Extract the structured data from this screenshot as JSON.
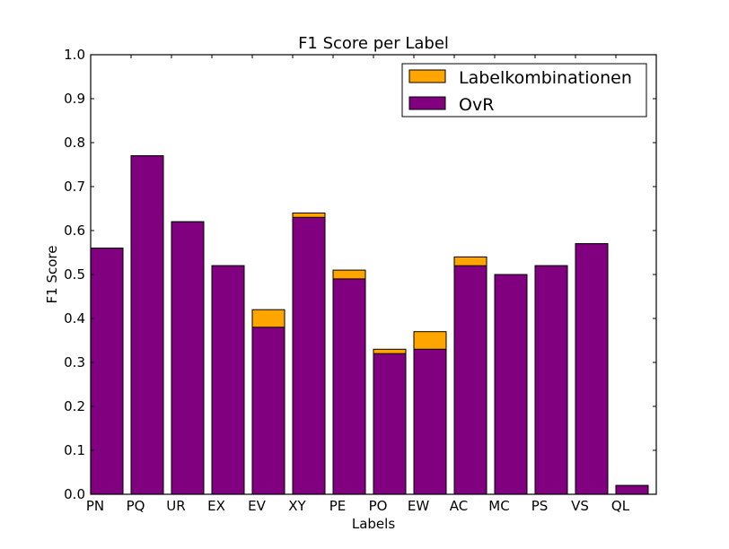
{
  "chart_data": {
    "type": "bar",
    "title": "F1 Score per Label",
    "xlabel": "Labels",
    "ylabel": "F1 Score",
    "ylim": [
      0.0,
      1.0
    ],
    "yticks": [
      "0.0",
      "0.1",
      "0.2",
      "0.3",
      "0.4",
      "0.5",
      "0.6",
      "0.7",
      "0.8",
      "0.9",
      "1.0"
    ],
    "categories": [
      "PN",
      "PQ",
      "UR",
      "EX",
      "EV",
      "XY",
      "PE",
      "PO",
      "EW",
      "AC",
      "MC",
      "PS",
      "VS",
      "QL"
    ],
    "series": [
      {
        "name": "Labelkombinationen",
        "color": "#ffa500",
        "values": [
          0.56,
          0.77,
          0.62,
          0.52,
          0.42,
          0.64,
          0.51,
          0.33,
          0.37,
          0.54,
          0.5,
          0.52,
          0.57,
          0.02
        ]
      },
      {
        "name": "OvR",
        "color": "#800080",
        "values": [
          0.56,
          0.77,
          0.62,
          0.52,
          0.38,
          0.63,
          0.49,
          0.32,
          0.33,
          0.52,
          0.5,
          0.52,
          0.57,
          0.02
        ]
      }
    ],
    "grid": false,
    "legend_position": "top-right"
  }
}
